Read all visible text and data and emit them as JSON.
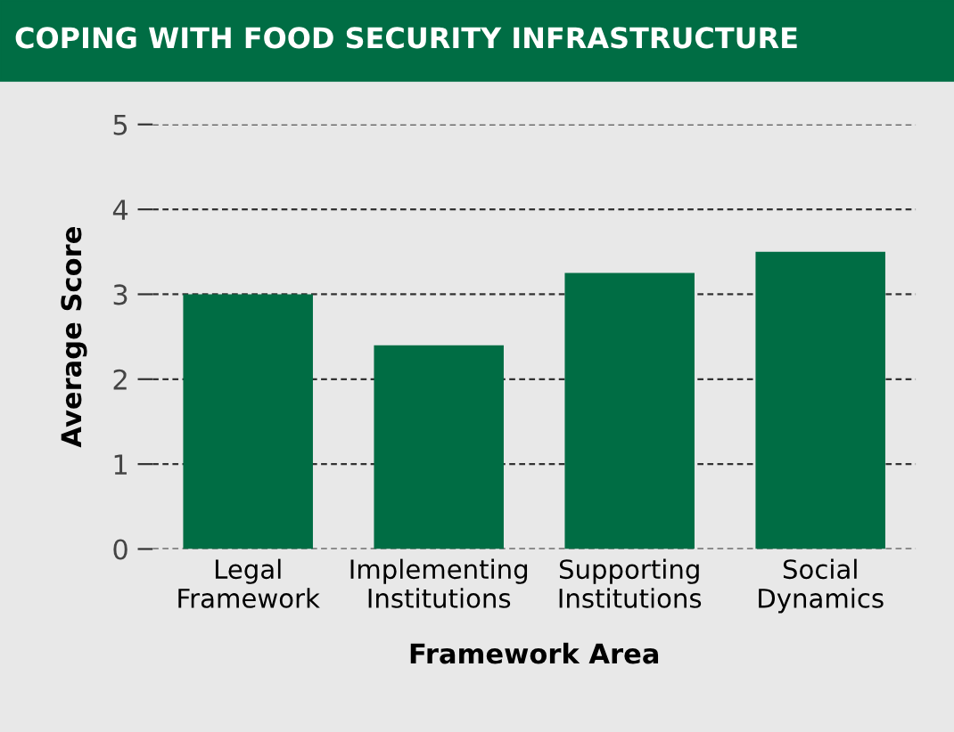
{
  "chart_data": {
    "type": "bar",
    "title": "COPING WITH FOOD SECURITY INFRASTRUCTURE",
    "xlabel": "Framework Area",
    "ylabel": "Average Score",
    "categories": [
      "Legal\nFramework",
      "Implementing\nInstitutions",
      "Supporting\nInstitutions",
      "Social\nDynamics"
    ],
    "values": [
      3.0,
      2.4,
      3.25,
      3.5
    ],
    "color": "#006d44",
    "ylim": [
      0,
      5
    ],
    "yticks": [
      0,
      1,
      2,
      3,
      4,
      5
    ],
    "grid": "y",
    "legend": false
  }
}
